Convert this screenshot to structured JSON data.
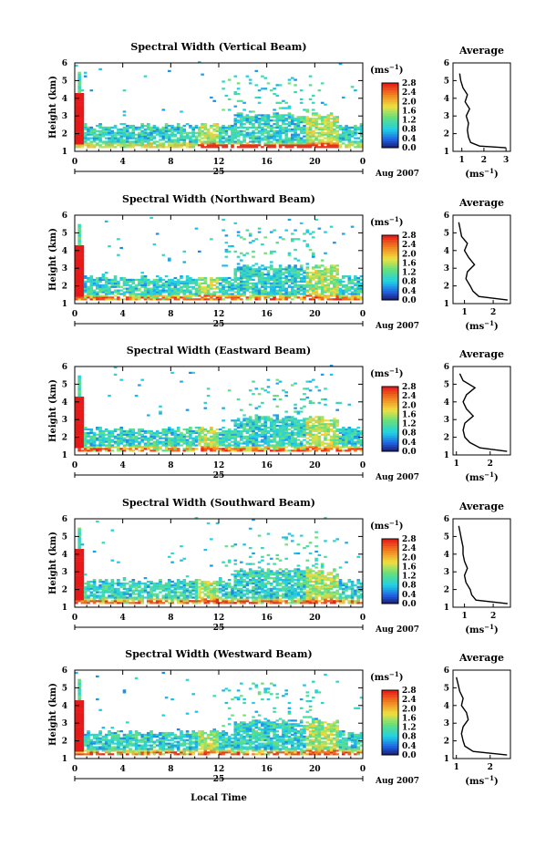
{
  "figure": {
    "xlabel": "Local Time",
    "ylabel": "Height (km)",
    "date_label": "Aug 2007",
    "day_label": "25",
    "units_label": "(ms",
    "units_exp": "−1",
    "units_close": ")",
    "avg_title": "Average",
    "x_ticks": [
      "0",
      "4",
      "8",
      "12",
      "16",
      "20",
      "0"
    ],
    "y_ticks": [
      "1",
      "2",
      "3",
      "4",
      "5",
      "6"
    ],
    "colorbar_ticks": [
      "0.0",
      "0.4",
      "0.8",
      "1.2",
      "1.6",
      "2.0",
      "2.4",
      "2.8"
    ],
    "colors": {
      "dark_blue": "#1a1a6e",
      "blue": "#2060e0",
      "cyan": "#20d0e8",
      "green": "#60e080",
      "yellow": "#f0e040",
      "orange": "#f08020",
      "red": "#e81818"
    }
  },
  "chart_data": [
    {
      "type": "heatmap",
      "title": "Spectral Width (Vertical Beam)",
      "xlim": [
        0,
        24
      ],
      "ylim": [
        1,
        6
      ],
      "colorbar_range": [
        0,
        2.8
      ],
      "avg_profile": {
        "xticks": [
          "1",
          "2",
          "3"
        ],
        "xlim": [
          0.6,
          3.2
        ],
        "heights": [
          1.2,
          1.3,
          1.5,
          1.8,
          2.2,
          2.6,
          3.0,
          3.4,
          3.8,
          4.2,
          4.6,
          5.0,
          5.4
        ],
        "values": [
          3.0,
          1.8,
          1.4,
          1.3,
          1.25,
          1.3,
          1.2,
          1.35,
          1.15,
          1.25,
          1.05,
          0.95,
          0.9
        ]
      }
    },
    {
      "type": "heatmap",
      "title": "Spectral Width (Northward Beam)",
      "xlim": [
        0,
        24
      ],
      "ylim": [
        1,
        6
      ],
      "colorbar_range": [
        0,
        2.8
      ],
      "avg_profile": {
        "xticks": [
          "1",
          "2"
        ],
        "xlim": [
          0.6,
          2.6
        ],
        "heights": [
          1.2,
          1.4,
          1.7,
          2.0,
          2.4,
          2.8,
          3.2,
          3.6,
          4.0,
          4.4,
          4.8,
          5.2,
          5.6
        ],
        "values": [
          2.5,
          1.5,
          1.3,
          1.2,
          1.05,
          1.1,
          1.35,
          1.15,
          1.0,
          1.1,
          0.9,
          0.85,
          0.8
        ]
      }
    },
    {
      "type": "heatmap",
      "title": "Spectral Width (Eastward Beam)",
      "xlim": [
        0,
        24
      ],
      "ylim": [
        1,
        6
      ],
      "colorbar_range": [
        0,
        2.8
      ],
      "avg_profile": {
        "xticks": [
          "1",
          "2"
        ],
        "xlim": [
          0.9,
          2.6
        ],
        "heights": [
          1.2,
          1.4,
          1.7,
          2.0,
          2.4,
          2.8,
          3.2,
          3.6,
          4.0,
          4.4,
          4.8,
          5.2,
          5.6
        ],
        "values": [
          2.5,
          1.7,
          1.4,
          1.25,
          1.2,
          1.25,
          1.5,
          1.3,
          1.2,
          1.3,
          1.55,
          1.2,
          1.1
        ]
      }
    },
    {
      "type": "heatmap",
      "title": "Spectral Width (Southward Beam)",
      "xlim": [
        0,
        24
      ],
      "ylim": [
        1,
        6
      ],
      "colorbar_range": [
        0,
        2.8
      ],
      "avg_profile": {
        "xticks": [
          "1",
          "2"
        ],
        "xlim": [
          0.6,
          2.6
        ],
        "heights": [
          1.2,
          1.4,
          1.7,
          2.0,
          2.4,
          2.8,
          3.2,
          3.6,
          4.0,
          4.4,
          4.8,
          5.2,
          5.6
        ],
        "values": [
          2.5,
          1.4,
          1.25,
          1.2,
          1.05,
          1.0,
          1.1,
          1.0,
          0.95,
          0.95,
          0.9,
          0.85,
          0.8
        ]
      }
    },
    {
      "type": "heatmap",
      "title": "Spectral Width (Westward Beam)",
      "xlim": [
        0,
        24
      ],
      "ylim": [
        1,
        6
      ],
      "colorbar_range": [
        0,
        2.8
      ],
      "avg_profile": {
        "xticks": [
          "1",
          "2"
        ],
        "xlim": [
          0.9,
          2.6
        ],
        "heights": [
          1.2,
          1.4,
          1.7,
          2.0,
          2.4,
          2.8,
          3.2,
          3.6,
          4.0,
          4.4,
          4.8,
          5.2,
          5.6
        ],
        "values": [
          2.5,
          1.5,
          1.25,
          1.2,
          1.15,
          1.2,
          1.35,
          1.3,
          1.15,
          1.2,
          1.1,
          1.05,
          1.0
        ]
      }
    }
  ]
}
